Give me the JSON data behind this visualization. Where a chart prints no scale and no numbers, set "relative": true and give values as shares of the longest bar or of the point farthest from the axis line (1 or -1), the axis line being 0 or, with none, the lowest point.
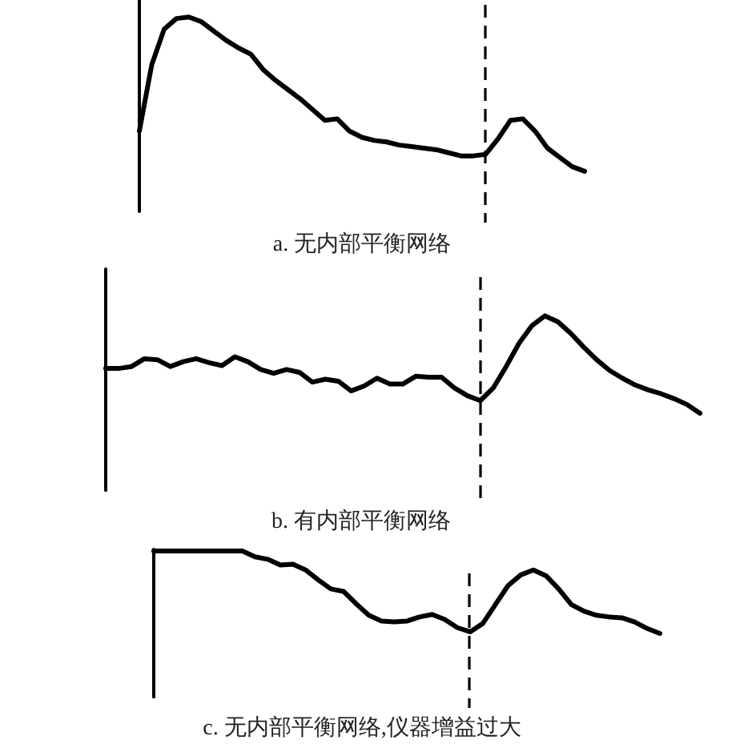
{
  "chart_data": [
    {
      "type": "line",
      "xlabel": "a. 无内部平衡网络",
      "relative": true,
      "categories": [
        null,
        null,
        null,
        null,
        null,
        null,
        null,
        null,
        null,
        null,
        null,
        null,
        null,
        null,
        null,
        null,
        null,
        null,
        null,
        null,
        null,
        null,
        null,
        null,
        null,
        null,
        null,
        null,
        null,
        null,
        null,
        null,
        null,
        null,
        null,
        null,
        null
      ],
      "values": [
        0.26,
        0.69,
        0.92,
        0.99,
        1,
        0.97,
        0.91,
        0.85,
        0.8,
        0.76,
        0.66,
        0.59,
        0.53,
        0.47,
        0.4,
        0.33,
        0.34,
        0.26,
        0.22,
        0.2,
        0.19,
        0.17,
        0.16,
        0.15,
        0.14,
        0.12,
        0.1,
        0.1,
        0.11,
        0.21,
        0.33,
        0.34,
        0.26,
        0.15,
        0.09,
        0.03,
        0
      ],
      "color": "#000000",
      "marker": "none",
      "grid": false
    },
    {
      "type": "line",
      "xlabel": "b. 有内部平衡网络",
      "relative": true,
      "categories": [
        null,
        null,
        null,
        null,
        null,
        null,
        null,
        null,
        null,
        null,
        null,
        null,
        null,
        null,
        null,
        null,
        null,
        null,
        null,
        null,
        null,
        null,
        null,
        null,
        null,
        null,
        null,
        null,
        null,
        null,
        null,
        null,
        null,
        null,
        null,
        null,
        null,
        null,
        null,
        null,
        null,
        null,
        null,
        null,
        null,
        null,
        null
      ],
      "values": [
        0.46,
        0.46,
        0.48,
        0.56,
        0.55,
        0.48,
        0.53,
        0.56,
        0.52,
        0.49,
        0.58,
        0.53,
        0.45,
        0.41,
        0.45,
        0.42,
        0.32,
        0.35,
        0.33,
        0.23,
        0.28,
        0.36,
        0.3,
        0.3,
        0.38,
        0.37,
        0.37,
        0.26,
        0.18,
        0.13,
        0.26,
        0.48,
        0.72,
        0.9,
        1,
        0.94,
        0.82,
        0.68,
        0.55,
        0.44,
        0.36,
        0.29,
        0.24,
        0.2,
        0.15,
        0.09,
        0
      ],
      "color": "#000000",
      "marker": "none",
      "grid": false
    },
    {
      "type": "line",
      "xlabel": "c. 无内部平衡网络,仪器增益过大",
      "relative": true,
      "categories": [
        null,
        null,
        null,
        null,
        null,
        null,
        null,
        null,
        null,
        null,
        null,
        null,
        null,
        null,
        null,
        null,
        null,
        null,
        null,
        null,
        null,
        null,
        null,
        null,
        null,
        null,
        null,
        null,
        null,
        null,
        null,
        null,
        null,
        null,
        null,
        null,
        null,
        null,
        null,
        null,
        null
      ],
      "values": [
        1,
        1,
        1,
        1,
        1,
        1,
        1,
        1,
        0.93,
        0.9,
        0.83,
        0.84,
        0.77,
        0.65,
        0.54,
        0.51,
        0.36,
        0.22,
        0.15,
        0.14,
        0.15,
        0.2,
        0.23,
        0.17,
        0.07,
        0.02,
        0.12,
        0.35,
        0.58,
        0.71,
        0.77,
        0.7,
        0.54,
        0.35,
        0.27,
        0.22,
        0.2,
        0.19,
        0.14,
        0.06,
        0
      ],
      "color": "#000000",
      "marker": "none",
      "grid": false
    }
  ]
}
